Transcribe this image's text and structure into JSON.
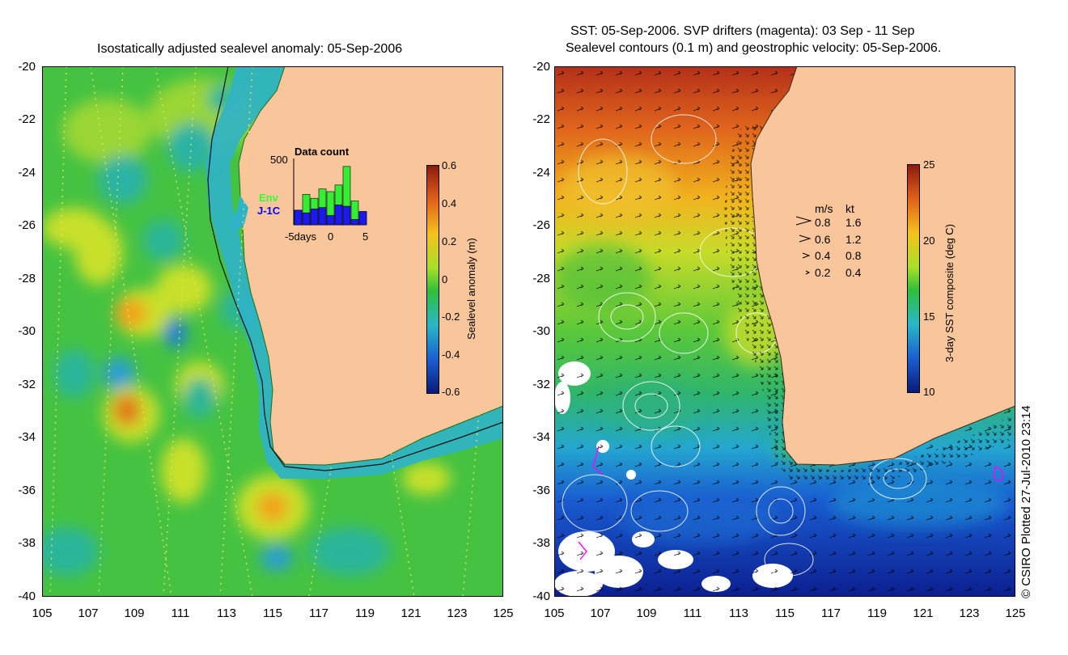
{
  "left_panel": {
    "title": "Isostatically adjusted sealevel anomaly: 05-Sep-2006",
    "lat_ticks": [
      "-20",
      "-22",
      "-24",
      "-26",
      "-28",
      "-30",
      "-32",
      "-34",
      "-36",
      "-38",
      "-40"
    ],
    "lon_ticks": [
      "105",
      "107",
      "109",
      "111",
      "113",
      "115",
      "117",
      "119",
      "121",
      "123",
      "125"
    ],
    "data_count": {
      "title": "Data count",
      "ymax_label": "500",
      "series_env_label": "Env",
      "series_j1c_label": "J-1C",
      "x_labels": [
        "-5days",
        "0",
        "5"
      ],
      "env_values": [
        110,
        230,
        200,
        270,
        250,
        300,
        440,
        180,
        100
      ],
      "j1c_values": [
        110,
        90,
        120,
        130,
        70,
        150,
        140,
        40,
        100
      ]
    },
    "colorbar": {
      "label": "Sealevel anomaly (m)",
      "ticks": [
        "0.6",
        "0.4",
        "0.2",
        "0",
        "-0.2",
        "-0.4",
        "-0.6"
      ]
    }
  },
  "right_panel": {
    "title_line1": "SST: 05-Sep-2006. SVP drifters (magenta): 03 Sep - 11 Sep",
    "title_line2": "Sealevel contours (0.1 m) and geostrophic velocity: 05-Sep-2006.",
    "lat_ticks": [
      "-20",
      "-22",
      "-24",
      "-26",
      "-28",
      "-30",
      "-32",
      "-34",
      "-36",
      "-38",
      "-40"
    ],
    "lon_ticks": [
      "105",
      "107",
      "109",
      "111",
      "113",
      "115",
      "117",
      "119",
      "121",
      "123",
      "125"
    ],
    "velocity_legend": {
      "header_ms": "m/s",
      "header_kt": "kt",
      "rows": [
        {
          "ms": "0.8",
          "kt": "1.6"
        },
        {
          "ms": "0.6",
          "kt": "1.2"
        },
        {
          "ms": "0.4",
          "kt": "0.8"
        },
        {
          "ms": "0.2",
          "kt": "0.4"
        }
      ]
    },
    "colorbar": {
      "label": "3-day SST composite (deg C)",
      "ticks": [
        "25",
        "20",
        "15",
        "10"
      ]
    }
  },
  "credit": "© CSIRO Plotted 27-Jul-2010 23:14",
  "colors": {
    "land": "#f9c59a",
    "ocean_base": "#3fbf3f",
    "drifter": "#ff00ff"
  }
}
